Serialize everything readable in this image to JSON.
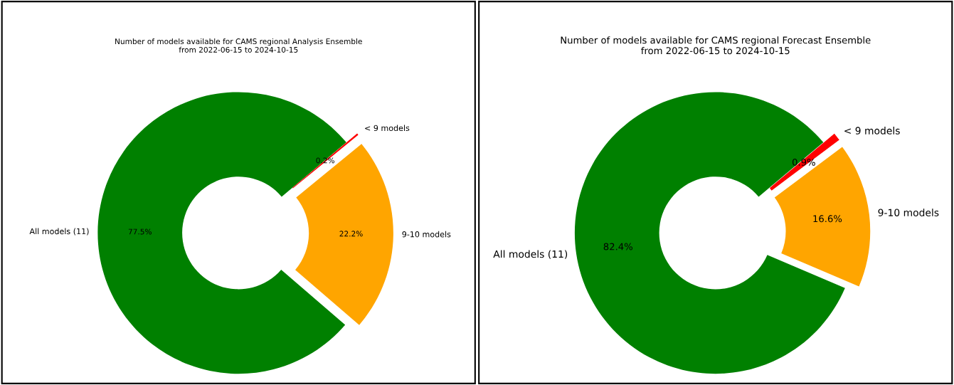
{
  "chart_data": [
    {
      "type": "donut",
      "title": "Number of models available for CAMS regional Analysis Ensemble\nfrom 2022-06-15 to 2024-10-15",
      "categories": [
        "All models (11)",
        "9-10 models",
        "< 9 models"
      ],
      "values": [
        77.5,
        22.2,
        0.2
      ],
      "value_labels": [
        "77.5%",
        "22.2%",
        "0.2%"
      ],
      "colors": [
        "#008000",
        "#ffa500",
        "#ff0000"
      ],
      "legend": false
    },
    {
      "type": "donut",
      "title": "Number of models available for CAMS regional Forecast Ensemble\nfrom 2022-06-15 to 2024-10-15",
      "categories": [
        "All models (11)",
        "9-10 models",
        "< 9 models"
      ],
      "values": [
        82.4,
        16.6,
        0.9
      ],
      "value_labels": [
        "82.4%",
        "16.6%",
        "0.9%"
      ],
      "colors": [
        "#008000",
        "#ffa500",
        "#ff0000"
      ],
      "legend": false
    }
  ]
}
